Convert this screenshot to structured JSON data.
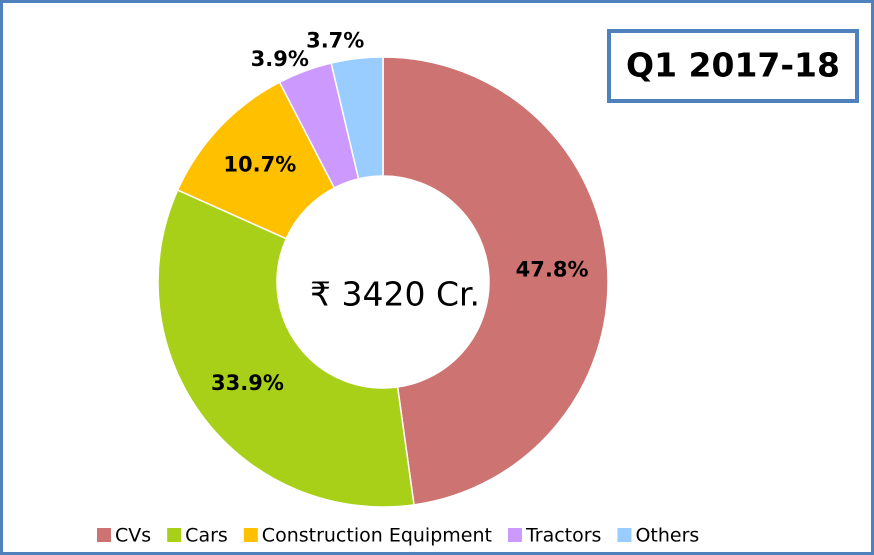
{
  "chart_data": {
    "type": "donut",
    "title": "Q1 2017-18",
    "center_label": "₹ 3420 Cr.",
    "categories": [
      "CVs",
      "Cars",
      "Construction Equipment",
      "Tractors",
      "Others"
    ],
    "values": [
      47.8,
      33.9,
      10.7,
      3.9,
      3.7
    ],
    "value_labels": [
      "47.8%",
      "33.9%",
      "10.7%",
      "3.9%",
      "3.7%"
    ],
    "colors": [
      "#cd7371",
      "#a9d018",
      "#ffc000",
      "#cc99ff",
      "#99ccff"
    ],
    "legend": "bottom"
  }
}
